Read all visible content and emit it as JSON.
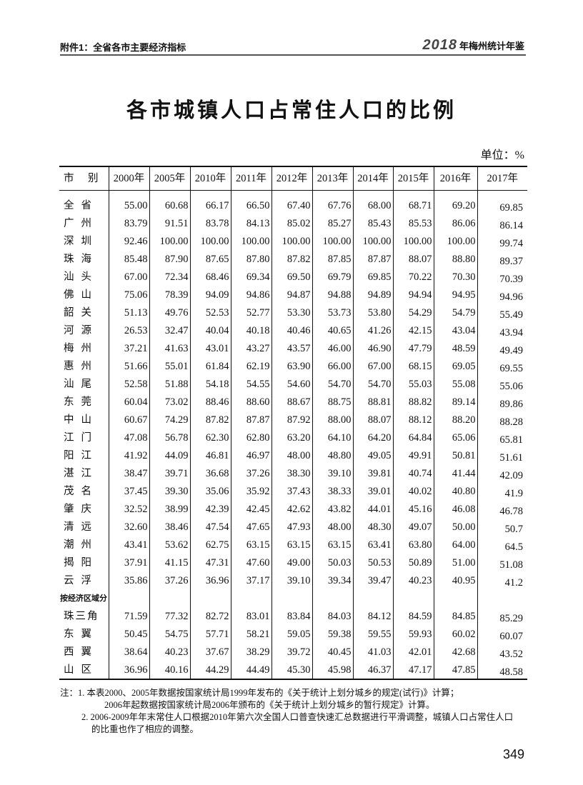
{
  "header": {
    "left": "附件1：全省各市主要经济指标",
    "year_logo": "2018",
    "right": "年梅州统计年鉴"
  },
  "title": "各市城镇人口占常住人口的比例",
  "unit": "单位：%",
  "table": {
    "columns": [
      "市 别",
      "2000年",
      "2005年",
      "2010年",
      "2011年",
      "2012年",
      "2013年",
      "2014年",
      "2015年",
      "2016年",
      "2017年"
    ],
    "rows": [
      {
        "name": "全省",
        "values": [
          "55.00",
          "60.68",
          "66.17",
          "66.50",
          "67.40",
          "67.76",
          "68.00",
          "68.71",
          "69.20",
          "69.85"
        ]
      },
      {
        "name": "广州",
        "values": [
          "83.79",
          "91.51",
          "83.78",
          "84.13",
          "85.02",
          "85.27",
          "85.43",
          "85.53",
          "86.06",
          "86.14"
        ]
      },
      {
        "name": "深圳",
        "values": [
          "92.46",
          "100.00",
          "100.00",
          "100.00",
          "100.00",
          "100.00",
          "100.00",
          "100.00",
          "100.00",
          "99.74"
        ]
      },
      {
        "name": "珠海",
        "values": [
          "85.48",
          "87.90",
          "87.65",
          "87.80",
          "87.82",
          "87.85",
          "87.87",
          "88.07",
          "88.80",
          "89.37"
        ]
      },
      {
        "name": "汕头",
        "values": [
          "67.00",
          "72.34",
          "68.46",
          "69.34",
          "69.50",
          "69.79",
          "69.85",
          "70.22",
          "70.30",
          "70.39"
        ]
      },
      {
        "name": "佛山",
        "values": [
          "75.06",
          "78.39",
          "94.09",
          "94.86",
          "94.87",
          "94.88",
          "94.89",
          "94.94",
          "94.95",
          "94.96"
        ]
      },
      {
        "name": "韶关",
        "values": [
          "51.13",
          "49.76",
          "52.53",
          "52.77",
          "53.30",
          "53.73",
          "53.80",
          "54.29",
          "54.79",
          "55.49"
        ]
      },
      {
        "name": "河源",
        "values": [
          "26.53",
          "32.47",
          "40.04",
          "40.18",
          "40.46",
          "40.65",
          "41.26",
          "42.15",
          "43.04",
          "43.94"
        ]
      },
      {
        "name": "梅州",
        "values": [
          "37.21",
          "41.63",
          "43.01",
          "43.27",
          "43.57",
          "46.00",
          "46.90",
          "47.79",
          "48.59",
          "49.49"
        ]
      },
      {
        "name": "惠州",
        "values": [
          "51.66",
          "55.01",
          "61.84",
          "62.19",
          "63.90",
          "66.00",
          "67.00",
          "68.15",
          "69.05",
          "69.55"
        ]
      },
      {
        "name": "汕尾",
        "values": [
          "52.58",
          "51.88",
          "54.18",
          "54.55",
          "54.60",
          "54.70",
          "54.70",
          "55.03",
          "55.08",
          "55.06"
        ]
      },
      {
        "name": "东莞",
        "values": [
          "60.04",
          "73.02",
          "88.46",
          "88.60",
          "88.67",
          "88.75",
          "88.81",
          "88.82",
          "89.14",
          "89.86"
        ]
      },
      {
        "name": "中山",
        "values": [
          "60.67",
          "74.29",
          "87.82",
          "87.87",
          "87.92",
          "88.00",
          "88.07",
          "88.12",
          "88.20",
          "88.28"
        ]
      },
      {
        "name": "江门",
        "values": [
          "47.08",
          "56.78",
          "62.30",
          "62.80",
          "63.20",
          "64.10",
          "64.20",
          "64.84",
          "65.06",
          "65.81"
        ]
      },
      {
        "name": "阳江",
        "values": [
          "41.92",
          "44.09",
          "46.81",
          "46.97",
          "48.00",
          "48.80",
          "49.05",
          "49.91",
          "50.81",
          "51.61"
        ]
      },
      {
        "name": "湛江",
        "values": [
          "38.47",
          "39.71",
          "36.68",
          "37.26",
          "38.30",
          "39.10",
          "39.81",
          "40.74",
          "41.44",
          "42.09"
        ]
      },
      {
        "name": "茂名",
        "values": [
          "37.45",
          "39.30",
          "35.06",
          "35.92",
          "37.43",
          "38.33",
          "39.01",
          "40.02",
          "40.80",
          "41.9"
        ]
      },
      {
        "name": "肇庆",
        "values": [
          "32.52",
          "38.99",
          "42.39",
          "42.45",
          "42.62",
          "43.82",
          "44.01",
          "45.16",
          "46.08",
          "46.78"
        ]
      },
      {
        "name": "清远",
        "values": [
          "32.60",
          "38.46",
          "47.54",
          "47.65",
          "47.93",
          "48.00",
          "48.30",
          "49.07",
          "50.00",
          "50.7"
        ]
      },
      {
        "name": "潮州",
        "values": [
          "43.41",
          "53.62",
          "62.75",
          "63.15",
          "63.15",
          "63.15",
          "63.41",
          "63.80",
          "64.00",
          "64.5"
        ]
      },
      {
        "name": "揭阳",
        "values": [
          "37.91",
          "41.15",
          "47.31",
          "47.60",
          "49.00",
          "50.03",
          "50.53",
          "50.89",
          "51.00",
          "51.08"
        ]
      },
      {
        "name": "云浮",
        "values": [
          "35.86",
          "37.26",
          "36.96",
          "37.17",
          "39.10",
          "39.34",
          "39.47",
          "40.23",
          "40.95",
          "41.2"
        ]
      }
    ],
    "section_label": "按经济区域分",
    "region_rows": [
      {
        "name": "珠三角",
        "values": [
          "71.59",
          "77.32",
          "82.72",
          "83.01",
          "83.84",
          "84.03",
          "84.12",
          "84.59",
          "84.85",
          "85.29"
        ]
      },
      {
        "name": "东翼",
        "values": [
          "50.45",
          "54.75",
          "57.71",
          "58.21",
          "59.05",
          "59.38",
          "59.55",
          "59.93",
          "60.02",
          "60.07"
        ]
      },
      {
        "name": "西翼",
        "values": [
          "38.64",
          "40.23",
          "37.67",
          "38.29",
          "39.72",
          "40.45",
          "41.03",
          "42.01",
          "42.68",
          "43.52"
        ]
      },
      {
        "name": "山区",
        "values": [
          "36.96",
          "40.16",
          "44.29",
          "44.49",
          "45.30",
          "45.98",
          "46.37",
          "47.17",
          "47.85",
          "48.58"
        ]
      }
    ]
  },
  "notes": [
    "注：1. 本表2000、2005年数据按国家统计局1999年发布的《关于统计上划分城乡的规定(试行)》计算；",
    "2006年起数据按国家统计局2006年颁布的《关于统计上划分城乡的暂行规定》计算。",
    "2. 2006-2009年年末常住人口根据2010年第六次全国人口普查快速汇总数据进行平滑调整，城镇人口占常住人口",
    "的比重也作了相应的调整。"
  ],
  "page_number": "349"
}
